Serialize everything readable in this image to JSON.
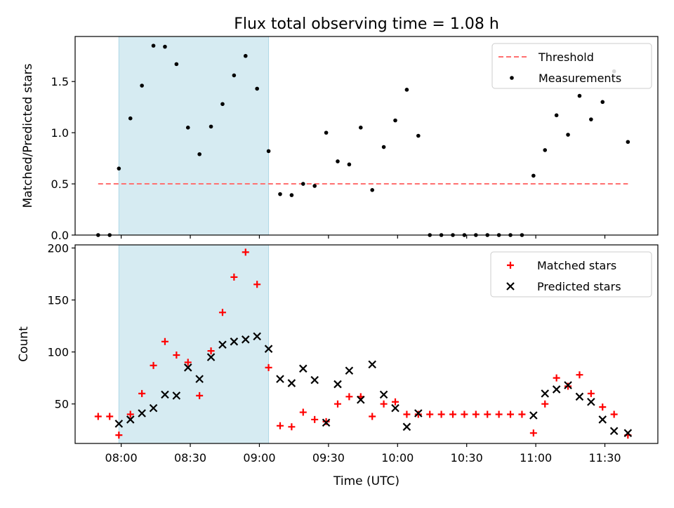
{
  "figure_title": "Flux total observing time = 1.08 h",
  "colors": {
    "span": "#add8e6",
    "threshold": "#ff7070",
    "matched": "#ff0000",
    "predicted": "#000000",
    "measure": "#000000"
  },
  "chart_data": [
    {
      "type": "scatter",
      "title": "Flux total observing time = 1.08 h",
      "ylabel": "Matched/Predicted stars",
      "xlabel": "",
      "xlim": [
        "07:40",
        "11:53"
      ],
      "ylim": [
        0,
        1.94
      ],
      "yticks": [
        0.0,
        0.5,
        1.0,
        1.5
      ],
      "ytick_labels": [
        "0.0",
        "0.5",
        "1.0",
        "1.5"
      ],
      "shaded_span": [
        "07:59",
        "09:04"
      ],
      "threshold": {
        "name": "Threshold",
        "y": 0.5,
        "x": [
          "07:50",
          "11:40"
        ]
      },
      "legend": [
        "Threshold",
        "Measurements"
      ],
      "legend_loc": "upper right",
      "series": [
        {
          "name": "Measurements",
          "x": [
            "07:50",
            "07:55",
            "07:59",
            "08:04",
            "08:09",
            "08:14",
            "08:19",
            "08:24",
            "08:29",
            "08:34",
            "08:39",
            "08:44",
            "08:49",
            "08:54",
            "08:59",
            "09:04",
            "09:09",
            "09:14",
            "09:19",
            "09:24",
            "09:29",
            "09:34",
            "09:39",
            "09:44",
            "09:49",
            "09:54",
            "09:59",
            "10:04",
            "10:09",
            "10:14",
            "10:19",
            "10:24",
            "10:29",
            "10:34",
            "10:39",
            "10:44",
            "10:49",
            "10:54",
            "10:59",
            "11:04",
            "11:09",
            "11:14",
            "11:19",
            "11:24",
            "11:29",
            "11:34",
            "11:40"
          ],
          "values": [
            0.0,
            0.0,
            0.65,
            1.14,
            1.46,
            1.85,
            1.84,
            1.67,
            1.05,
            0.79,
            1.06,
            1.28,
            1.56,
            1.75,
            1.43,
            0.82,
            0.4,
            0.39,
            0.5,
            0.48,
            1.0,
            0.72,
            0.69,
            1.05,
            0.44,
            0.86,
            1.12,
            1.42,
            0.97,
            0.0,
            0.0,
            0.0,
            0.0,
            0.0,
            0.0,
            0.0,
            0.0,
            0.0,
            0.58,
            0.83,
            1.17,
            0.98,
            1.36,
            1.13,
            1.3,
            1.6,
            0.91
          ]
        }
      ]
    },
    {
      "type": "scatter",
      "title": "",
      "xlabel": "Time (UTC)",
      "ylabel": "Count",
      "xlim": [
        "07:40",
        "11:53"
      ],
      "ylim": [
        12,
        203
      ],
      "yticks": [
        50,
        100,
        150,
        200
      ],
      "ytick_labels": [
        "50",
        "100",
        "150",
        "200"
      ],
      "xticks": [
        "08:00",
        "08:30",
        "09:00",
        "09:30",
        "10:00",
        "10:30",
        "11:00",
        "11:30"
      ],
      "shaded_span": [
        "07:59",
        "09:04"
      ],
      "legend": [
        "Matched stars",
        "Predicted stars"
      ],
      "legend_loc": "upper right",
      "series": [
        {
          "name": "Matched stars",
          "marker": "+",
          "x": [
            "07:50",
            "07:55",
            "07:59",
            "08:04",
            "08:09",
            "08:14",
            "08:19",
            "08:24",
            "08:29",
            "08:34",
            "08:39",
            "08:44",
            "08:49",
            "08:54",
            "08:59",
            "09:04",
            "09:09",
            "09:14",
            "09:19",
            "09:24",
            "09:29",
            "09:34",
            "09:39",
            "09:44",
            "09:49",
            "09:54",
            "09:59",
            "10:04",
            "10:09",
            "10:14",
            "10:19",
            "10:24",
            "10:29",
            "10:34",
            "10:39",
            "10:44",
            "10:49",
            "10:54",
            "10:59",
            "11:04",
            "11:09",
            "11:14",
            "11:19",
            "11:24",
            "11:29",
            "11:34",
            "11:40"
          ],
          "values": [
            38,
            38,
            20,
            40,
            60,
            87,
            110,
            97,
            90,
            58,
            101,
            138,
            172,
            196,
            165,
            85,
            29,
            28,
            42,
            35,
            33,
            50,
            57,
            57,
            38,
            50,
            52,
            40,
            40,
            40,
            40,
            40,
            40,
            40,
            40,
            40,
            40,
            40,
            22,
            50,
            75,
            67,
            78,
            60,
            47,
            40,
            20
          ]
        },
        {
          "name": "Predicted stars",
          "marker": "x",
          "x": [
            "07:59",
            "08:04",
            "08:09",
            "08:14",
            "08:19",
            "08:24",
            "08:29",
            "08:34",
            "08:39",
            "08:44",
            "08:49",
            "08:54",
            "08:59",
            "09:04",
            "09:09",
            "09:14",
            "09:19",
            "09:24",
            "09:29",
            "09:34",
            "09:39",
            "09:44",
            "09:49",
            "09:54",
            "09:59",
            "10:04",
            "10:09",
            "10:59",
            "11:04",
            "11:09",
            "11:14",
            "11:19",
            "11:24",
            "11:29",
            "11:34",
            "11:40"
          ],
          "values": [
            31,
            35,
            41,
            46,
            59,
            58,
            85,
            74,
            95,
            107,
            110,
            112,
            115,
            103,
            74,
            70,
            84,
            73,
            32,
            69,
            82,
            54,
            88,
            59,
            46,
            28,
            41,
            39,
            60,
            64,
            68,
            57,
            52,
            35,
            24,
            22
          ]
        }
      ]
    }
  ]
}
